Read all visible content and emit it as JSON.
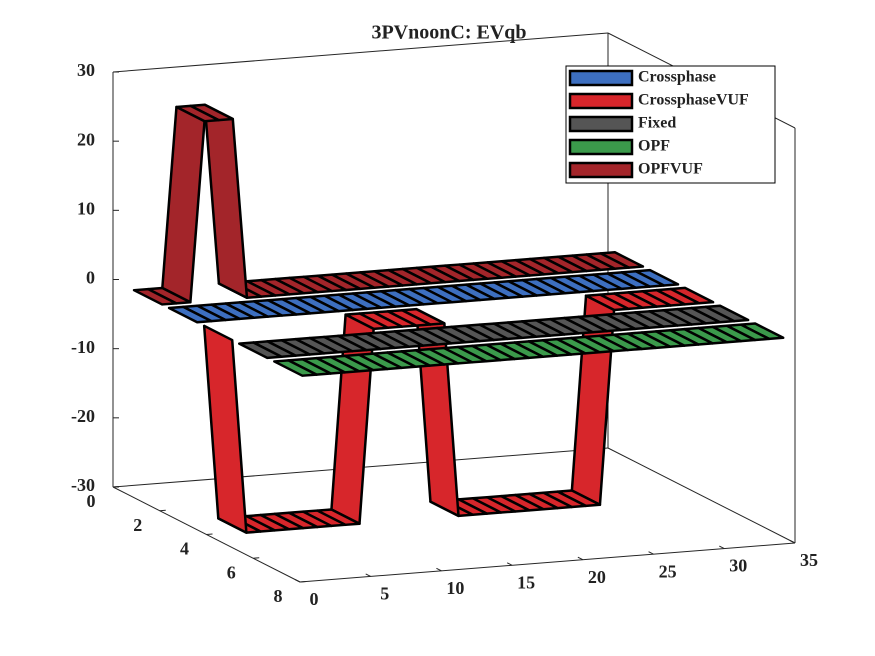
{
  "chart_data": {
    "type": "ribbon3d",
    "title": "3PVnoonC: EVqb",
    "x": [
      0,
      1,
      2,
      3,
      4,
      5,
      6,
      7,
      8,
      9,
      10,
      11,
      12,
      13,
      14,
      15,
      16,
      17,
      18,
      19,
      20,
      21,
      22,
      23,
      24,
      25,
      26,
      27,
      28,
      29,
      30,
      31,
      32,
      33,
      34
    ],
    "series": [
      {
        "name": "Crossphase",
        "color": "#3d6fc0",
        "y": 3,
        "values": [
          0,
          0,
          0,
          0,
          0,
          0,
          0,
          0,
          0,
          0,
          0,
          0,
          0,
          0,
          0,
          0,
          0,
          0,
          0,
          0,
          0,
          0,
          0,
          0,
          0,
          0,
          0,
          0,
          0,
          0,
          0,
          0,
          0,
          0,
          0
        ]
      },
      {
        "name": "CrossphaseVUF",
        "color": "#d7262b",
        "y": 4.5,
        "values": [
          0,
          -28,
          -28,
          -28,
          -28,
          -28,
          -28,
          -28,
          -28,
          -28,
          0,
          0,
          0,
          0,
          0,
          0,
          -28,
          -28,
          -28,
          -28,
          -28,
          -28,
          -28,
          -28,
          -28,
          -28,
          -28,
          0,
          0,
          0,
          0,
          0,
          0,
          0,
          0
        ]
      },
      {
        "name": "Fixed",
        "color": "#555555",
        "y": 6,
        "values": [
          0,
          0,
          0,
          0,
          0,
          0,
          0,
          0,
          0,
          0,
          0,
          0,
          0,
          0,
          0,
          0,
          0,
          0,
          0,
          0,
          0,
          0,
          0,
          0,
          0,
          0,
          0,
          0,
          0,
          0,
          0,
          0,
          0,
          0,
          0
        ]
      },
      {
        "name": "OPF",
        "color": "#3b9a4b",
        "y": 7.5,
        "values": [
          0,
          0,
          0,
          0,
          0,
          0,
          0,
          0,
          0,
          0,
          0,
          0,
          0,
          0,
          0,
          0,
          0,
          0,
          0,
          0,
          0,
          0,
          0,
          0,
          0,
          0,
          0,
          0,
          0,
          0,
          0,
          0,
          0,
          0,
          0
        ]
      },
      {
        "name": "OPFVUF",
        "color": "#a3252a",
        "y": 1.5,
        "values": [
          0,
          0,
          0,
          26,
          26,
          26,
          0,
          0,
          0,
          0,
          0,
          0,
          0,
          0,
          0,
          0,
          0,
          0,
          0,
          0,
          0,
          0,
          0,
          0,
          0,
          0,
          0,
          0,
          0,
          0,
          0,
          0,
          0,
          0,
          0
        ]
      }
    ],
    "xlim": [
      0,
      35
    ],
    "xticks": [
      0,
      5,
      10,
      15,
      20,
      25,
      30,
      35
    ],
    "ylim": [
      0,
      8
    ],
    "yticks": [
      0,
      2,
      4,
      6,
      8
    ],
    "zlim": [
      -30,
      30
    ],
    "zticks": [
      -30,
      -20,
      -10,
      0,
      10,
      20,
      30
    ],
    "legend": "top-right"
  }
}
